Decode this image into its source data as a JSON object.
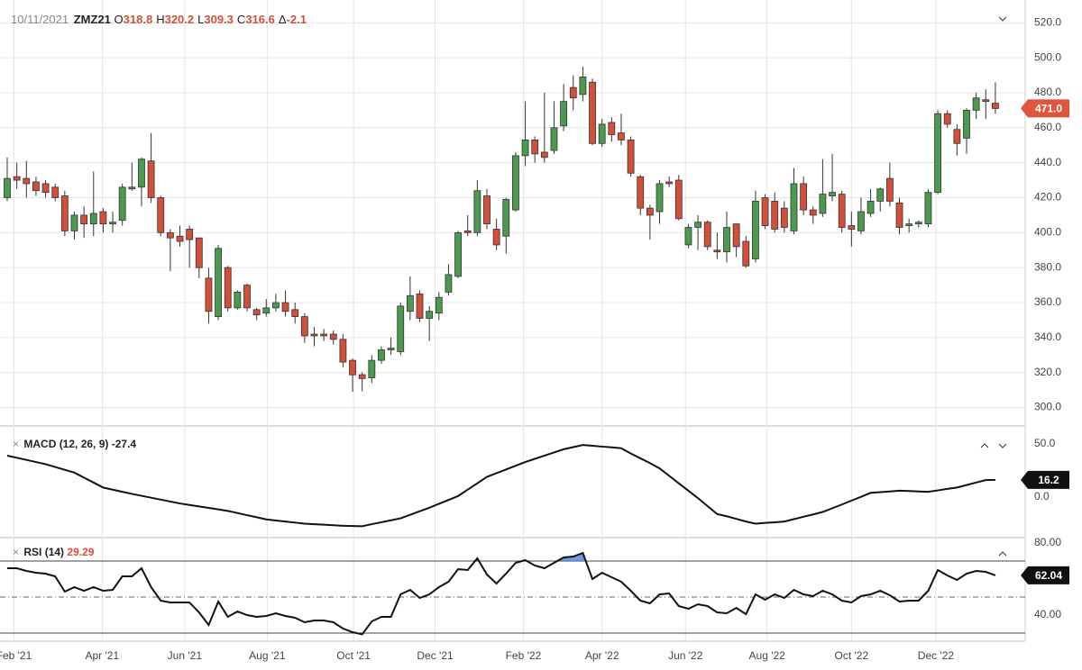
{
  "chart_data": [
    {
      "type": "candlestick",
      "title": "ZMZ21",
      "date": "10/11/2021",
      "ohlc": [
        {
          "key": "O",
          "value": 318.8
        },
        {
          "key": "H",
          "value": 320.2
        },
        {
          "key": "L",
          "value": 309.3
        },
        {
          "key": "C",
          "value": 316.6
        },
        {
          "key": "Δ",
          "value": -2.1
        }
      ],
      "open": [
        420,
        432,
        431,
        429,
        428,
        426,
        421,
        401,
        410,
        405,
        412,
        405,
        407,
        425,
        426,
        441,
        420,
        400,
        398,
        402,
        397,
        374,
        352,
        380,
        357,
        370,
        356,
        354,
        357,
        360,
        356,
        352,
        342,
        342,
        342,
        339,
        327,
        318.8,
        317,
        327,
        333,
        332,
        355,
        365,
        351,
        354,
        366,
        375,
        401,
        400,
        421,
        402,
        398,
        413,
        444,
        453,
        446,
        447,
        461,
        483,
        479,
        486,
        451,
        463,
        457,
        453,
        432,
        414,
        412,
        429,
        430,
        393,
        403,
        406,
        390,
        389,
        405,
        395,
        385,
        420,
        418,
        414,
        401,
        428,
        413,
        411,
        421,
        422,
        404,
        401,
        411,
        418,
        431,
        417,
        404,
        405,
        405,
        423,
        468,
        459,
        454,
        470,
        476,
        474
      ],
      "high": [
        443,
        440,
        441,
        432,
        430,
        428,
        424,
        412,
        415,
        435,
        414,
        412,
        428,
        440,
        443,
        457,
        421,
        402,
        404,
        404,
        397,
        380,
        393,
        381,
        367,
        371,
        357,
        362,
        365,
        367,
        360,
        354,
        346,
        345,
        344,
        342,
        328,
        320.2,
        330,
        335,
        340,
        360,
        375,
        367,
        358,
        366,
        382,
        401,
        410,
        430,
        425,
        408,
        420,
        446,
        475,
        455,
        480,
        475,
        485,
        490,
        495,
        488,
        465,
        466,
        468,
        455,
        433,
        416,
        430,
        432,
        433,
        405,
        410,
        407,
        400,
        412,
        405,
        398,
        424,
        422,
        423,
        418,
        437,
        432,
        415,
        442,
        445,
        424,
        412,
        420,
        425,
        426,
        440,
        420,
        408,
        407,
        425,
        470,
        470,
        462,
        471,
        480,
        482,
        486
      ],
      "low": [
        418,
        425,
        420,
        421,
        420,
        418,
        398,
        396,
        397,
        398,
        400,
        400,
        404,
        424,
        415,
        417,
        398,
        378,
        392,
        380,
        374,
        348,
        350,
        355,
        356,
        355,
        350,
        352,
        355,
        352,
        348,
        337,
        335,
        338,
        336,
        323,
        309,
        309.3,
        314,
        325,
        330,
        330,
        350,
        349,
        338,
        350,
        364,
        374,
        398,
        398,
        402,
        390,
        388,
        412,
        438,
        440,
        440,
        445,
        458,
        470,
        475,
        450,
        449,
        452,
        450,
        432,
        410,
        396,
        405,
        426,
        407,
        391,
        390,
        390,
        385,
        383,
        386,
        380,
        383,
        402,
        400,
        400,
        399,
        410,
        405,
        409,
        418,
        400,
        392,
        399,
        409,
        412,
        415,
        399,
        400,
        403,
        403,
        422,
        460,
        444,
        445,
        465,
        465,
        468
      ],
      "close": [
        431,
        430,
        428,
        424,
        423,
        420,
        401,
        410,
        405,
        411,
        405,
        406,
        426,
        426,
        442,
        420,
        400,
        397,
        395,
        396,
        380,
        355,
        391,
        357,
        366,
        357,
        353,
        357,
        360,
        355,
        352,
        341,
        341,
        341,
        339,
        326,
        318.7,
        316.6,
        327,
        333,
        334,
        358,
        364,
        351,
        355,
        363,
        376,
        400,
        400,
        424,
        405,
        393,
        419,
        444,
        453,
        445,
        443,
        460,
        475,
        477,
        489,
        451,
        462,
        456,
        453,
        434,
        414,
        410,
        428,
        428,
        408,
        403,
        406,
        392,
        389,
        403,
        392,
        381,
        418,
        404,
        402,
        403,
        428,
        413,
        410,
        422,
        423,
        403,
        402,
        412,
        418,
        425,
        418,
        403,
        405,
        406,
        423,
        468,
        462,
        451,
        470,
        477,
        475,
        471
      ],
      "up_color": "#4c9a4f",
      "down_color": "#d2503a",
      "ylim": [
        290,
        533
      ],
      "yticks": [
        {
          "value": 300,
          "label": "300.0"
        },
        {
          "value": 320,
          "label": "320.0"
        },
        {
          "value": 340,
          "label": "340.0"
        },
        {
          "value": 360,
          "label": "360.0"
        },
        {
          "value": 380,
          "label": "380.0"
        },
        {
          "value": 400,
          "label": "400.0"
        },
        {
          "value": 420,
          "label": "420.0"
        },
        {
          "value": 440,
          "label": "440.0"
        },
        {
          "value": 460,
          "label": "460.0"
        },
        {
          "value": 480,
          "label": "480.0"
        },
        {
          "value": 500,
          "label": "500.0"
        },
        {
          "value": 520,
          "label": "520.0"
        }
      ],
      "xticks": [
        {
          "value": 0.7,
          "label": "Feb '21"
        },
        {
          "value": 9.9,
          "label": "Apr '21"
        },
        {
          "value": 18.5,
          "label": "Jun '21"
        },
        {
          "value": 27.1,
          "label": "Aug '21"
        },
        {
          "value": 36.1,
          "label": "Oct '21"
        },
        {
          "value": 44.6,
          "label": "Dec '21"
        },
        {
          "value": 53.8,
          "label": "Feb '22"
        },
        {
          "value": 62,
          "label": "Apr '22"
        },
        {
          "value": 70.7,
          "label": "Jun '22"
        },
        {
          "value": 79.2,
          "label": "Aug '22"
        },
        {
          "value": 88,
          "label": "Oct '22"
        },
        {
          "value": 96.8,
          "label": "Dec '22"
        }
      ],
      "last": {
        "value": 471,
        "label": "471.0"
      },
      "last_color": "#e0553e",
      "grid": true
    },
    {
      "type": "line",
      "title": "MACD (12, 26, 9)",
      "current": -27.4,
      "values": [
        39,
        37,
        35,
        33,
        31,
        28.3,
        25.7,
        23,
        18.3,
        13.7,
        9,
        7,
        5,
        3,
        1.2,
        -0.6,
        -2.4,
        -4.2,
        -6,
        -7.4,
        -8.8,
        -10.2,
        -11.6,
        -13,
        -15,
        -17,
        -19,
        -21,
        -22,
        -23,
        -24,
        -25,
        -25.5,
        -26,
        -26.5,
        -27,
        -27.2,
        -27.4,
        -25.5,
        -23.7,
        -21.8,
        -20,
        -16.7,
        -13.3,
        -10,
        -6.3,
        -2.7,
        1,
        7,
        13,
        19,
        22.5,
        26,
        29.5,
        33,
        36,
        39,
        42,
        45,
        47,
        49,
        48.3,
        47.5,
        46.8,
        46,
        41,
        36.5,
        32,
        27,
        20,
        13,
        6,
        -1,
        -8.5,
        -16,
        -18,
        -20.5,
        -23,
        -25,
        -24.3,
        -23.7,
        -23,
        -20.8,
        -18.5,
        -16.3,
        -14,
        -10.5,
        -7,
        -3.3,
        0.3,
        4,
        4.7,
        5.3,
        6,
        5.7,
        5.3,
        5,
        6.3,
        7.7,
        9,
        11.3,
        13.7,
        16,
        16.2
      ],
      "color": "#111111",
      "ylim": [
        -37.3,
        64.4
      ],
      "yticks": [
        {
          "value": 0,
          "label": "0.0"
        },
        {
          "value": 50,
          "label": "50.0"
        }
      ],
      "last": 16.2
    },
    {
      "type": "line",
      "title": "RSI (14)",
      "current": 29.29,
      "values": [
        66,
        66,
        64.5,
        63.5,
        63,
        61.5,
        53,
        55.5,
        53.5,
        55.5,
        53.5,
        54,
        61.5,
        61.5,
        66,
        55.5,
        48,
        47,
        47,
        47,
        41.5,
        34.5,
        47.5,
        39,
        42,
        40,
        39,
        39.5,
        41,
        39.5,
        38.5,
        36,
        37,
        37,
        36,
        32.5,
        30.5,
        29.29,
        36.5,
        39,
        39,
        51.5,
        54,
        49.5,
        51.5,
        55.5,
        58.5,
        65.5,
        65,
        71.5,
        62.5,
        57.5,
        63,
        69,
        70.5,
        67.5,
        66,
        69,
        72,
        72.5,
        74.5,
        60,
        63.5,
        61,
        58.5,
        53.5,
        48,
        46.5,
        51.5,
        52,
        45,
        43.5,
        46,
        45,
        41.5,
        41,
        44,
        40.5,
        51.5,
        48.5,
        51.5,
        49.5,
        54,
        51.5,
        50.5,
        53.5,
        51.5,
        48,
        47,
        50.5,
        51.5,
        53.5,
        51,
        47.5,
        48,
        48,
        53.5,
        65,
        62,
        59.5,
        63,
        64.5,
        64,
        62.04
      ],
      "color": "#111111",
      "ylim": [
        25.5,
        82.5
      ],
      "yticks": [
        {
          "value": 40,
          "label": "40.00"
        },
        {
          "value": 80,
          "label": "80.00"
        }
      ],
      "levels": [
        70,
        50,
        30
      ],
      "above_color": "#4a7fe0",
      "below_color": "#e0503a",
      "last": 62.04
    }
  ]
}
